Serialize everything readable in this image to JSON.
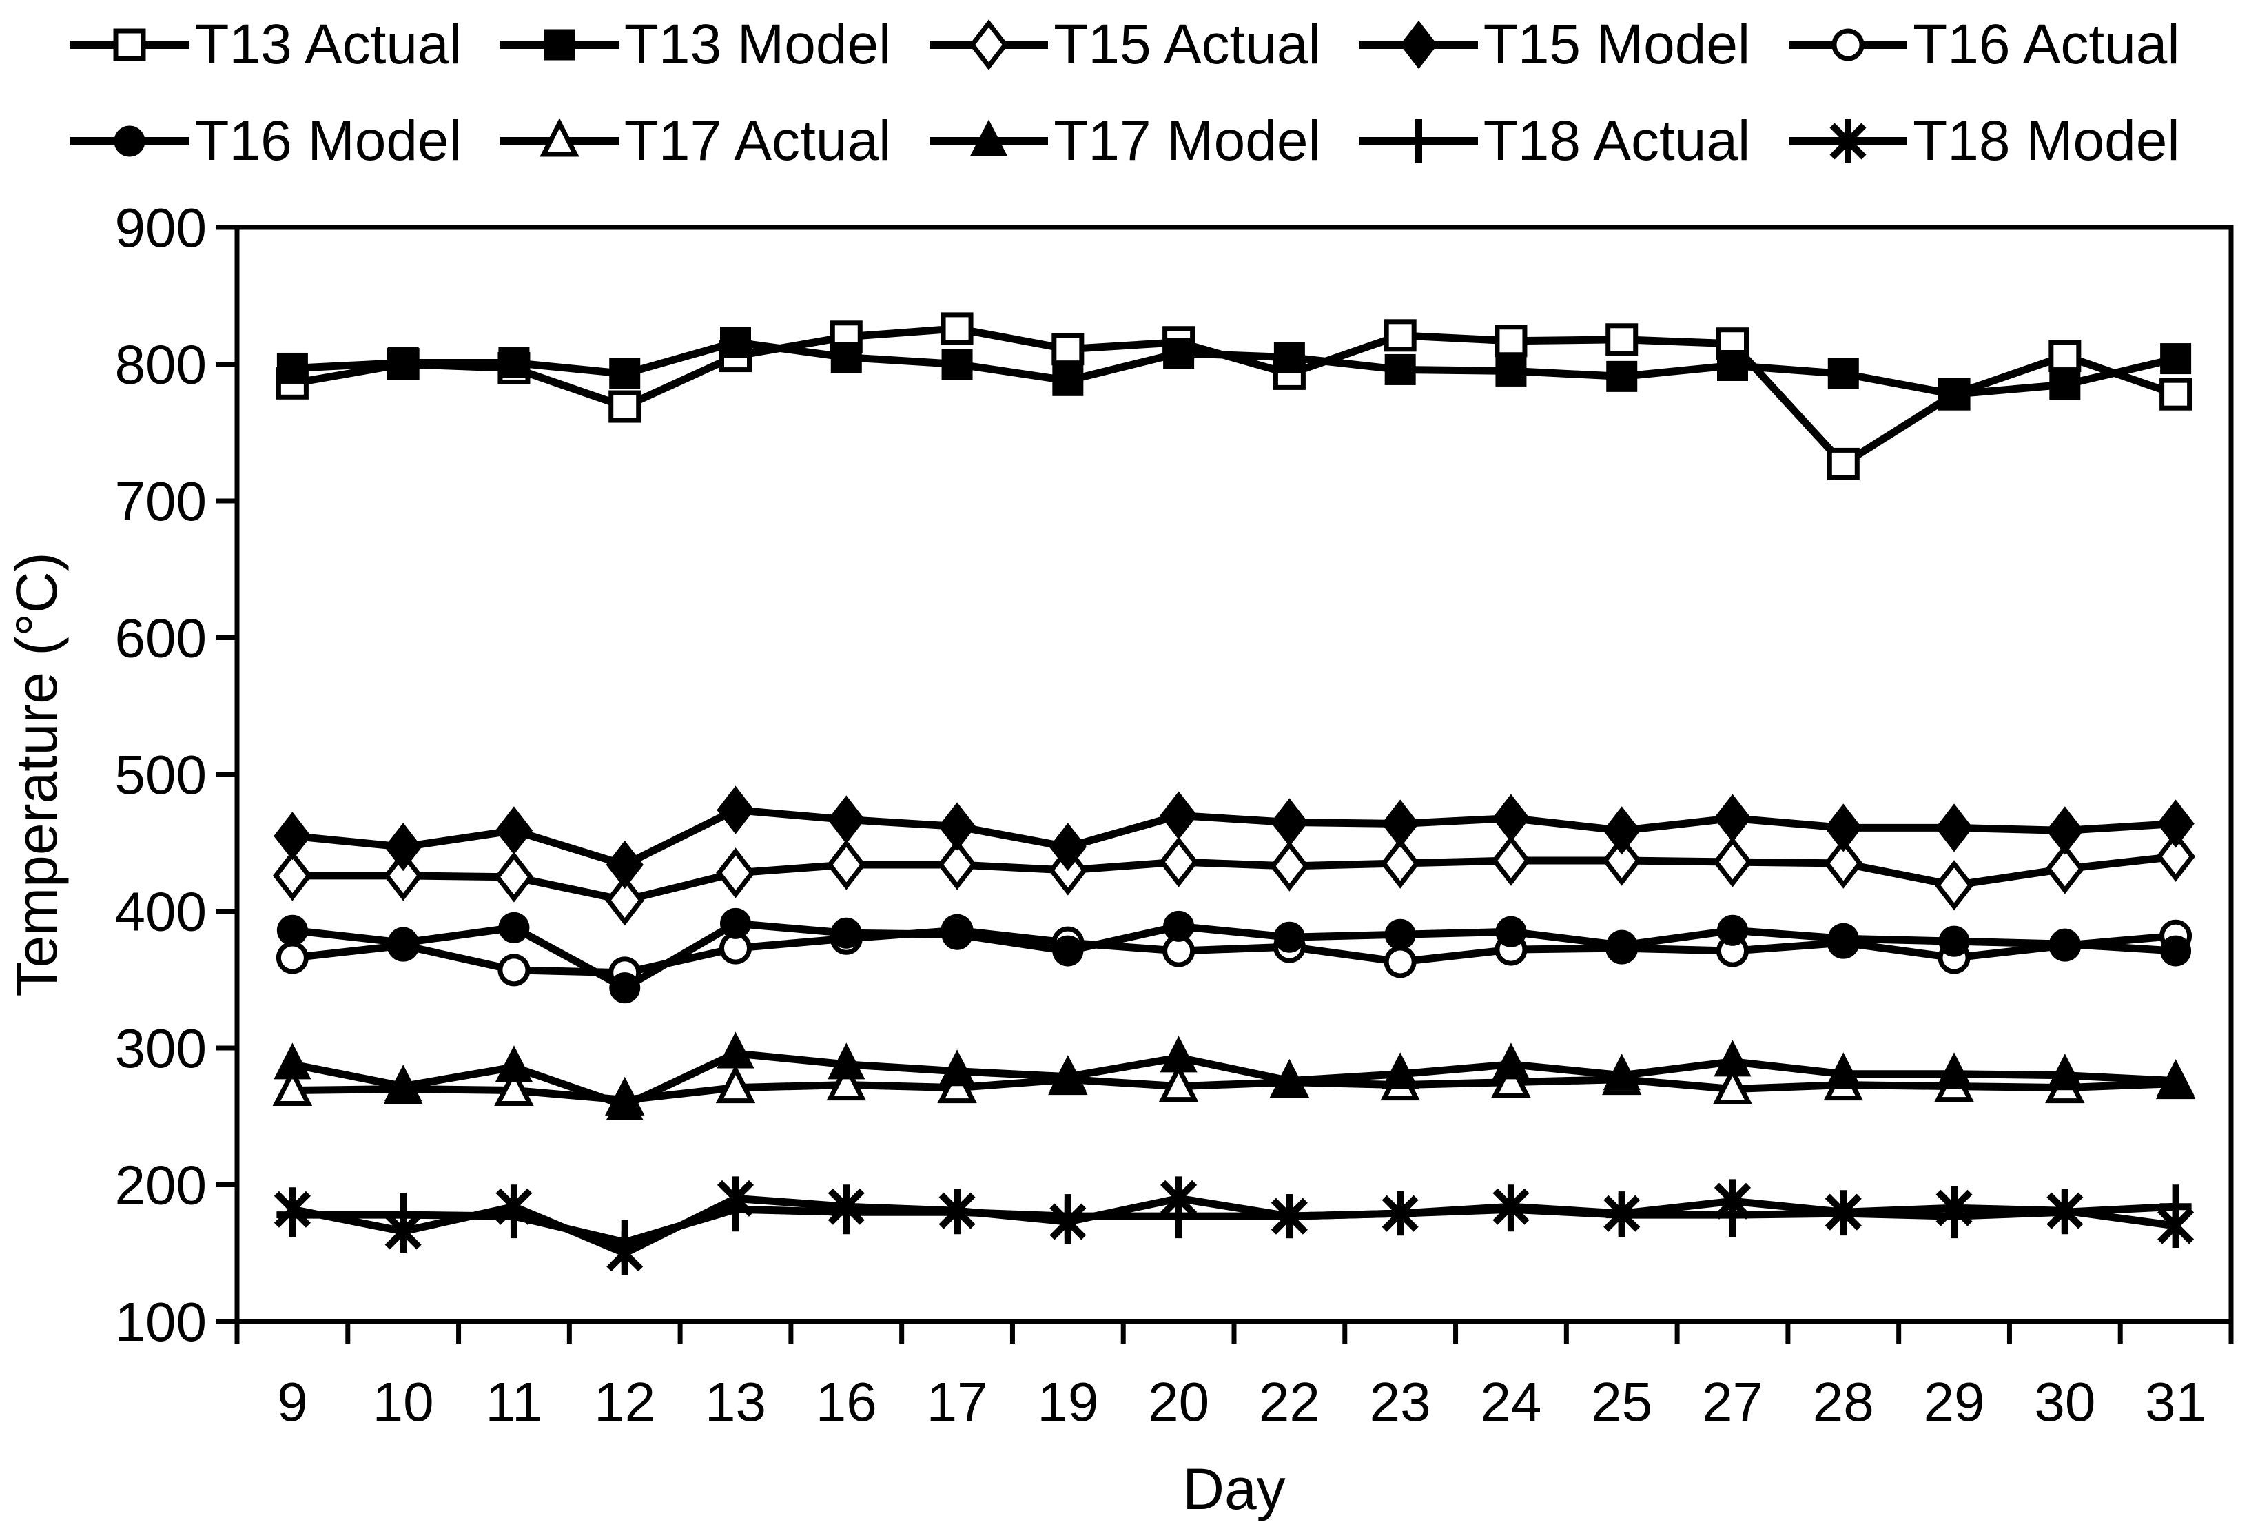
{
  "page": {
    "background": "#ffffff",
    "foreground": "#000000"
  },
  "chart_data": {
    "type": "line",
    "title": "",
    "xlabel": "Day",
    "ylabel": "Temperature (°C)",
    "grid": false,
    "legend_position": "top",
    "x_categories": [
      "9",
      "10",
      "11",
      "12",
      "13",
      "16",
      "17",
      "19",
      "20",
      "22",
      "23",
      "24",
      "25",
      "27",
      "28",
      "29",
      "30",
      "31"
    ],
    "y_axis": {
      "min": 100,
      "max": 900,
      "tick_step": 100,
      "tick_labels": [
        "100",
        "200",
        "300",
        "400",
        "500",
        "600",
        "700",
        "800",
        "900"
      ]
    },
    "legend_rows": [
      [
        "T13 Actual",
        "T13 Model",
        "T15 Actual",
        "T15 Model",
        "T16 Actual"
      ],
      [
        "T16 Model",
        "T17 Actual",
        "T17 Model",
        "T18 Actual",
        "T18 Model"
      ]
    ],
    "series": [
      {
        "name": "T13 Actual",
        "marker": "square",
        "fill": "open",
        "values": [
          786,
          800,
          797,
          769,
          806,
          820,
          826,
          811,
          816,
          793,
          821,
          817,
          818,
          815,
          727,
          778,
          806,
          778
        ]
      },
      {
        "name": "T13 Model",
        "marker": "square",
        "fill": "solid",
        "values": [
          797,
          801,
          801,
          793,
          816,
          805,
          800,
          788,
          808,
          805,
          796,
          795,
          791,
          799,
          793,
          778,
          785,
          804
        ]
      },
      {
        "name": "T15 Actual",
        "marker": "diamond",
        "fill": "open",
        "values": [
          426,
          426,
          425,
          408,
          428,
          434,
          434,
          430,
          436,
          433,
          435,
          437,
          437,
          436,
          435,
          419,
          431,
          440
        ]
      },
      {
        "name": "T15 Model",
        "marker": "diamond",
        "fill": "solid",
        "values": [
          455,
          447,
          459,
          434,
          474,
          467,
          462,
          447,
          470,
          465,
          464,
          468,
          459,
          468,
          461,
          461,
          459,
          464
        ]
      },
      {
        "name": "T16 Actual",
        "marker": "circle",
        "fill": "open",
        "values": [
          366,
          375,
          357,
          355,
          373,
          380,
          386,
          377,
          371,
          374,
          363,
          372,
          373,
          371,
          377,
          366,
          375,
          382
        ]
      },
      {
        "name": "T16 Model",
        "marker": "circle",
        "fill": "solid",
        "values": [
          386,
          377,
          388,
          344,
          391,
          384,
          383,
          371,
          389,
          381,
          383,
          385,
          375,
          386,
          380,
          378,
          376,
          371
        ]
      },
      {
        "name": "T17 Actual",
        "marker": "triangle",
        "fill": "open",
        "values": [
          269,
          270,
          269,
          262,
          271,
          273,
          271,
          277,
          272,
          275,
          273,
          275,
          277,
          270,
          273,
          272,
          271,
          274
        ]
      },
      {
        "name": "T17 Model",
        "marker": "triangle",
        "fill": "solid",
        "values": [
          288,
          272,
          286,
          258,
          296,
          288,
          283,
          279,
          293,
          276,
          281,
          288,
          280,
          290,
          281,
          281,
          280,
          276
        ]
      },
      {
        "name": "T18 Actual",
        "marker": "plus",
        "fill": "line",
        "values": [
          178,
          178,
          177,
          158,
          182,
          180,
          180,
          177,
          177,
          177,
          179,
          182,
          178,
          178,
          179,
          177,
          180,
          184
        ]
      },
      {
        "name": "T18 Model",
        "marker": "asterisk",
        "fill": "line",
        "values": [
          182,
          166,
          184,
          150,
          190,
          184,
          181,
          173,
          190,
          177,
          179,
          184,
          179,
          188,
          180,
          183,
          181,
          170
        ]
      }
    ]
  }
}
